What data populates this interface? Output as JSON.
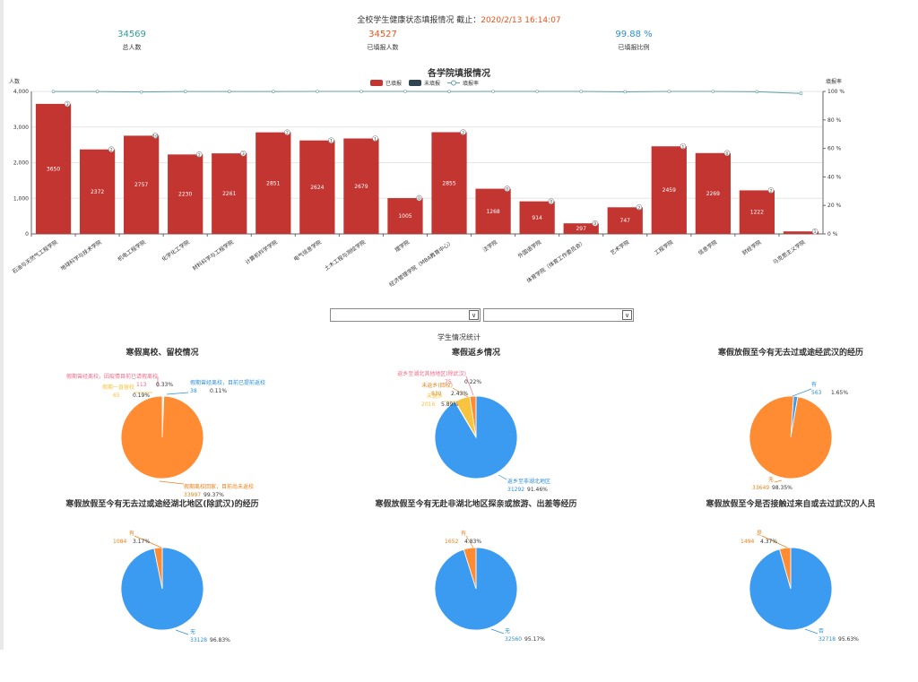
{
  "header": {
    "title_prefix": "全校学生健康状态填报情况 截止：",
    "timestamp": "2020/2/13 16:14:07"
  },
  "stats": [
    {
      "value": "34569",
      "label": "总人数",
      "color": "#2e9c8f"
    },
    {
      "value": "34527",
      "label": "已填报人数",
      "color": "#e8531b"
    },
    {
      "value": "99.88 %",
      "label": "已填报比例",
      "color": "#2f8fd8"
    }
  ],
  "colors": {
    "bar": "#c23531",
    "unfilled": "#2f4554",
    "rate": "#61a0a8",
    "orange": "#ff8c33",
    "blue": "#3b9bf0",
    "pink": "#f06b8a",
    "yellow": "#f8c33f",
    "callout_orange": "#e8821b",
    "callout_blue": "#2f8fd8"
  },
  "chart_data": [
    {
      "type": "bar",
      "title": "各学院填报情况",
      "legend": [
        "已填报",
        "未填报",
        "填报率"
      ],
      "ylabel_left": "人数",
      "ylabel_right": "填报率",
      "ylim": [
        0,
        4000
      ],
      "y2lim": [
        0,
        100
      ],
      "yticks": [
        "0",
        "1,000",
        "2,000",
        "3,000",
        "4,000"
      ],
      "y2ticks": [
        "0 %",
        "20 %",
        "40 %",
        "60 %",
        "80 %",
        "100 %"
      ],
      "categories": [
        "石油与天然气工程学院",
        "地球科学与技术学院",
        "机电工程学院",
        "化学化工学院",
        "材料科学与工程学院",
        "计算机科学学院",
        "电气信息学院",
        "土木工程与测绘学院",
        "理学院",
        "经济管理学院（MBA教育中心）",
        "法学院",
        "外国语学院",
        "体育学院（体育工作委员会）",
        "艺术学院",
        "工程学院",
        "信息学院",
        "财经学院",
        "马克思主义学院"
      ],
      "series": [
        {
          "name": "已填报",
          "values": [
            3650,
            2372,
            2757,
            2230,
            2261,
            2851,
            2624,
            2679,
            1005,
            2855,
            1268,
            914,
            297,
            747,
            2459,
            2269,
            1222,
            70
          ]
        },
        {
          "name": "未填报",
          "values": [
            3,
            2,
            10,
            2,
            3,
            2,
            1,
            1,
            0,
            2,
            0,
            0,
            0,
            2,
            1,
            0,
            2,
            1
          ]
        },
        {
          "name": "填报率",
          "values": [
            99.9,
            99.9,
            99.6,
            99.9,
            99.9,
            99.9,
            100,
            100,
            100,
            99.9,
            100,
            100,
            100,
            99.7,
            100,
            100,
            99.8,
            98.6
          ]
        }
      ],
      "data_labels": [
        "3650",
        "2372",
        "2757",
        "2230",
        "2261",
        "2851",
        "2624",
        "2679",
        "1005",
        "2855",
        "1268",
        "914",
        "297",
        "747",
        "2459",
        "2269",
        "1222",
        ""
      ],
      "top_labels": [
        "3",
        "2",
        "10",
        "2",
        "3",
        "2",
        "1",
        "1",
        "0",
        "2",
        "0",
        "0",
        "0",
        "2",
        "1",
        "0",
        "2",
        "1"
      ]
    },
    {
      "type": "pie",
      "title": "寒假离校、留校情况",
      "slices": [
        {
          "name": "假期离校回家，目前尚未返校",
          "value": 33997,
          "pct": "99.37%",
          "color": "#ff8c33"
        },
        {
          "name": "假期曾经离校，因疫情目前已请假离校",
          "value": 113,
          "pct": "0.33%",
          "color": "#f06b8a"
        },
        {
          "name": "假期一直留校",
          "value": 65,
          "pct": "0.19%",
          "color": "#f8c33f"
        },
        {
          "name": "假期曾经离校，目前已提前返校",
          "value": 38,
          "pct": "0.11%",
          "color": "#3b9bf0"
        }
      ]
    },
    {
      "type": "pie",
      "title": "寒假返乡情况",
      "slices": [
        {
          "name": "返乡至非湖北地区",
          "value": 31292,
          "pct": "91.46%",
          "color": "#3b9bf0"
        },
        {
          "name": "未返乡",
          "value": 2016,
          "pct": "5.89%",
          "color": "#f8c33f"
        },
        {
          "name": "未返乡(回校)",
          "value": 830,
          "pct": "2.43%",
          "color": "#ff8c33"
        },
        {
          "name": "返乡至湖北其他地区(除武汉)",
          "value": 75,
          "pct": "0.22%",
          "color": "#f06b8a"
        }
      ]
    },
    {
      "type": "pie",
      "title": "寒假放假至今有无去过或途经武汉的经历",
      "slices": [
        {
          "name": "无",
          "value": 33649,
          "pct": "98.35%",
          "color": "#ff8c33"
        },
        {
          "name": "有",
          "value": 563,
          "pct": "1.65%",
          "color": "#3b9bf0"
        }
      ]
    },
    {
      "type": "pie",
      "title": "寒假放假至今有无去过或途经湖北地区(除武汉)的经历",
      "slices": [
        {
          "name": "无",
          "value": 33128,
          "pct": "96.83%",
          "color": "#3b9bf0"
        },
        {
          "name": "有",
          "value": 1084,
          "pct": "3.17%",
          "color": "#ff8c33"
        }
      ]
    },
    {
      "type": "pie",
      "title": "寒假放假至今有无赴非湖北地区探亲或旅游、出差等经历",
      "slices": [
        {
          "name": "无",
          "value": 32560,
          "pct": "95.17%",
          "color": "#3b9bf0"
        },
        {
          "name": "有",
          "value": 1652,
          "pct": "4.83%",
          "color": "#ff8c33"
        }
      ]
    },
    {
      "type": "pie",
      "title": "寒假放假至今是否接触过来自或去过武汉的人员",
      "slices": [
        {
          "name": "否",
          "value": 32718,
          "pct": "95.63%",
          "color": "#3b9bf0"
        },
        {
          "name": "是",
          "value": 1494,
          "pct": "4.37%",
          "color": "#ff8c33"
        }
      ]
    }
  ],
  "filters": {
    "caption": "学生情况统计",
    "arrow": "∨"
  }
}
